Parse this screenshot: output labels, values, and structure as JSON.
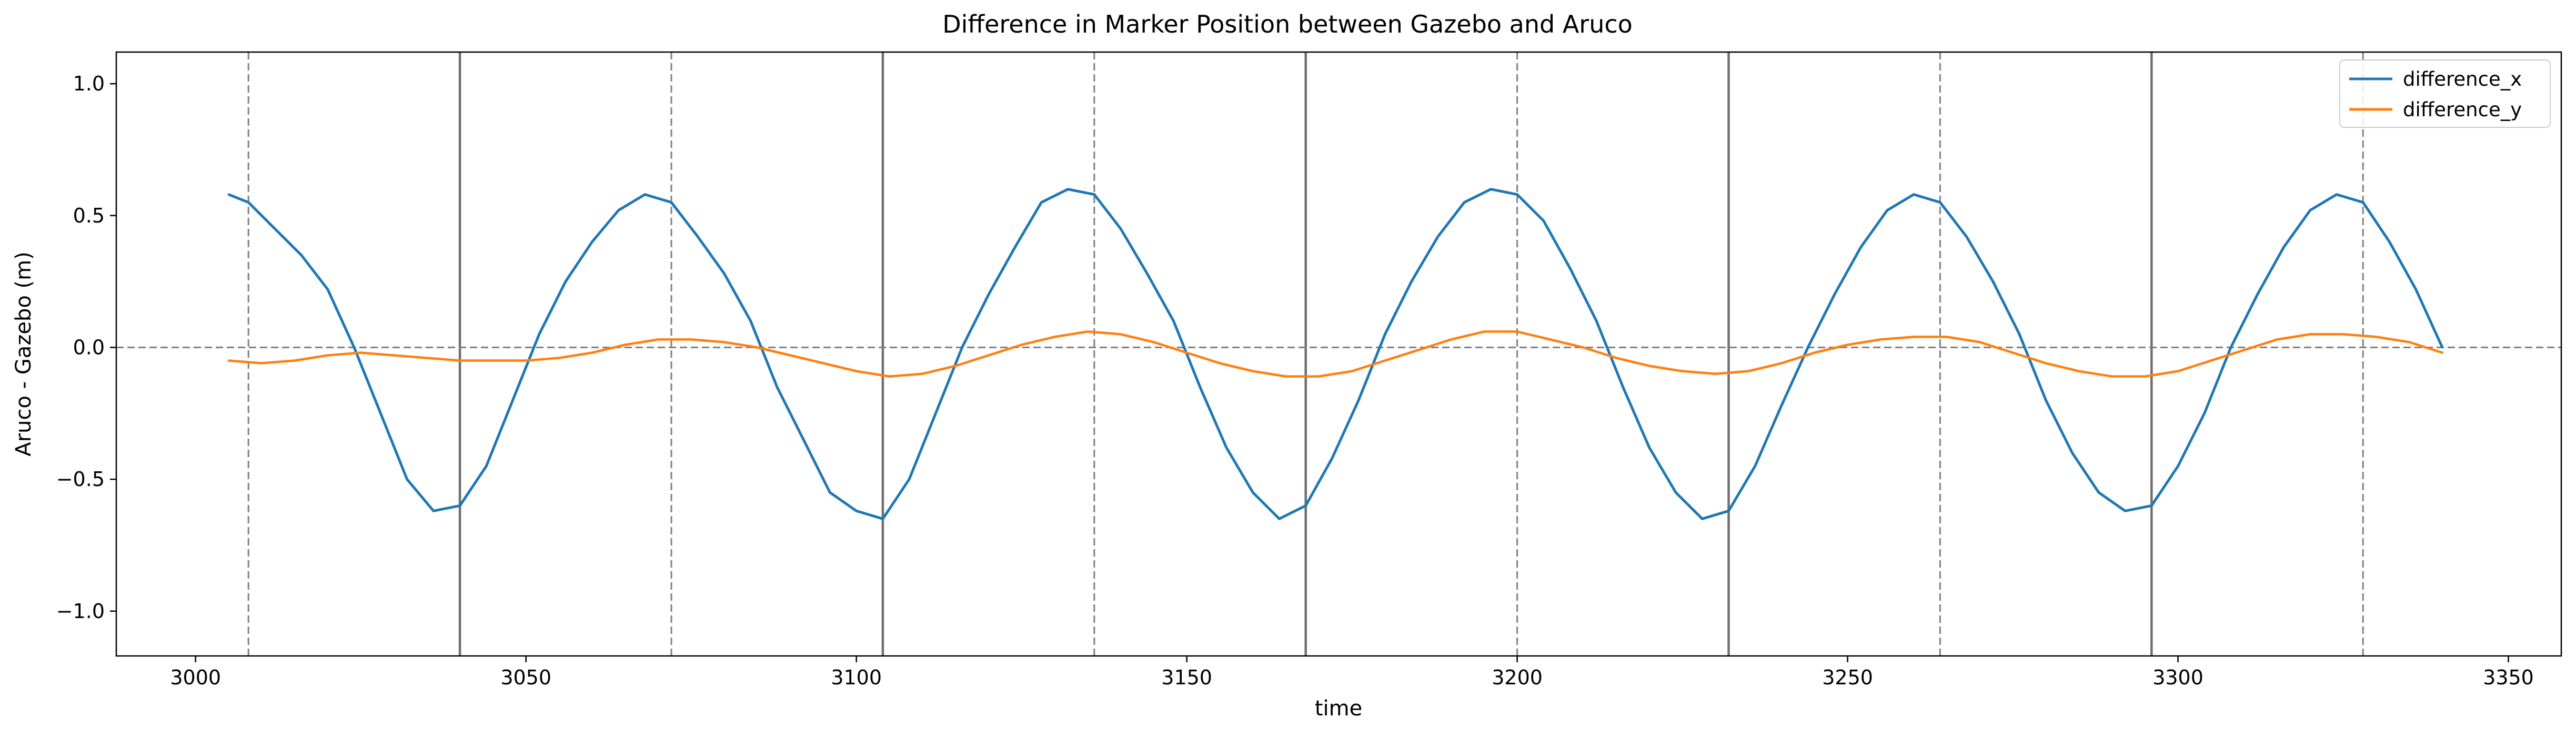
{
  "chart_data": {
    "type": "line",
    "title": "Difference in Marker Position between Gazebo and Aruco",
    "xlabel": "time",
    "ylabel": "Aruco - Gazebo (m)",
    "xlim": [
      2988,
      3358
    ],
    "ylim": [
      -1.17,
      1.12
    ],
    "xticks": [
      3000,
      3050,
      3100,
      3150,
      3200,
      3250,
      3300,
      3350
    ],
    "yticks": [
      -1.0,
      -0.5,
      0.0,
      0.5,
      1.0
    ],
    "xtick_labels": [
      "3000",
      "3050",
      "3100",
      "3150",
      "3200",
      "3250",
      "3300",
      "3350"
    ],
    "ytick_labels": [
      "−1.0",
      "−0.5",
      "0.0",
      "0.5",
      "1.0"
    ],
    "grid": false,
    "legend_position": "upper right",
    "reference_lines": {
      "horizontal_dashed_y": 0.0,
      "vertical_solid_x": [
        3040,
        3104,
        3168,
        3232,
        3296
      ],
      "vertical_dashed_x": [
        3008,
        3072,
        3136,
        3200,
        3264,
        3328
      ]
    },
    "series": [
      {
        "name": "difference_x",
        "color": "#1f77b4",
        "x": [
          3005,
          3008,
          3012,
          3016,
          3020,
          3024,
          3028,
          3032,
          3036,
          3040,
          3044,
          3048,
          3052,
          3056,
          3060,
          3064,
          3068,
          3072,
          3076,
          3080,
          3084,
          3088,
          3092,
          3096,
          3100,
          3104,
          3108,
          3112,
          3116,
          3120,
          3124,
          3128,
          3132,
          3136,
          3140,
          3144,
          3148,
          3152,
          3156,
          3160,
          3164,
          3168,
          3172,
          3176,
          3180,
          3184,
          3188,
          3192,
          3196,
          3200,
          3204,
          3208,
          3212,
          3216,
          3220,
          3224,
          3228,
          3232,
          3236,
          3240,
          3244,
          3248,
          3252,
          3256,
          3260,
          3264,
          3268,
          3272,
          3276,
          3280,
          3284,
          3288,
          3292,
          3296,
          3300,
          3304,
          3308,
          3312,
          3316,
          3320,
          3324,
          3328,
          3332,
          3336,
          3340
        ],
        "y": [
          0.58,
          0.55,
          0.45,
          0.35,
          0.22,
          0.0,
          -0.25,
          -0.5,
          -0.62,
          -0.6,
          -0.45,
          -0.2,
          0.05,
          0.25,
          0.4,
          0.52,
          0.58,
          0.55,
          0.42,
          0.28,
          0.1,
          -0.15,
          -0.35,
          -0.55,
          -0.62,
          -0.65,
          -0.5,
          -0.25,
          0.0,
          0.2,
          0.38,
          0.55,
          0.6,
          0.58,
          0.45,
          0.28,
          0.1,
          -0.15,
          -0.38,
          -0.55,
          -0.65,
          -0.6,
          -0.42,
          -0.2,
          0.05,
          0.25,
          0.42,
          0.55,
          0.6,
          0.58,
          0.48,
          0.3,
          0.1,
          -0.15,
          -0.38,
          -0.55,
          -0.65,
          -0.62,
          -0.45,
          -0.22,
          0.0,
          0.2,
          0.38,
          0.52,
          0.58,
          0.55,
          0.42,
          0.25,
          0.05,
          -0.2,
          -0.4,
          -0.55,
          -0.62,
          -0.6,
          -0.45,
          -0.25,
          0.0,
          0.2,
          0.38,
          0.52,
          0.58,
          0.55,
          0.4,
          0.22,
          0.0
        ]
      },
      {
        "name": "difference_y",
        "color": "#ff7f0e",
        "x": [
          3005,
          3010,
          3015,
          3020,
          3025,
          3030,
          3035,
          3040,
          3045,
          3050,
          3055,
          3060,
          3065,
          3070,
          3075,
          3080,
          3085,
          3090,
          3095,
          3100,
          3105,
          3110,
          3115,
          3120,
          3125,
          3130,
          3135,
          3140,
          3145,
          3150,
          3155,
          3160,
          3165,
          3170,
          3175,
          3180,
          3185,
          3190,
          3195,
          3200,
          3205,
          3210,
          3215,
          3220,
          3225,
          3230,
          3235,
          3240,
          3245,
          3250,
          3255,
          3260,
          3265,
          3270,
          3275,
          3280,
          3285,
          3290,
          3295,
          3300,
          3305,
          3310,
          3315,
          3320,
          3325,
          3330,
          3335,
          3340
        ],
        "y": [
          -0.05,
          -0.06,
          -0.05,
          -0.03,
          -0.02,
          -0.03,
          -0.04,
          -0.05,
          -0.05,
          -0.05,
          -0.04,
          -0.02,
          0.01,
          0.03,
          0.03,
          0.02,
          0.0,
          -0.03,
          -0.06,
          -0.09,
          -0.11,
          -0.1,
          -0.07,
          -0.03,
          0.01,
          0.04,
          0.06,
          0.05,
          0.02,
          -0.02,
          -0.06,
          -0.09,
          -0.11,
          -0.11,
          -0.09,
          -0.05,
          -0.01,
          0.03,
          0.06,
          0.06,
          0.03,
          0.0,
          -0.04,
          -0.07,
          -0.09,
          -0.1,
          -0.09,
          -0.06,
          -0.02,
          0.01,
          0.03,
          0.04,
          0.04,
          0.02,
          -0.02,
          -0.06,
          -0.09,
          -0.11,
          -0.11,
          -0.09,
          -0.05,
          -0.01,
          0.03,
          0.05,
          0.05,
          0.04,
          0.02,
          -0.02
        ]
      }
    ]
  }
}
